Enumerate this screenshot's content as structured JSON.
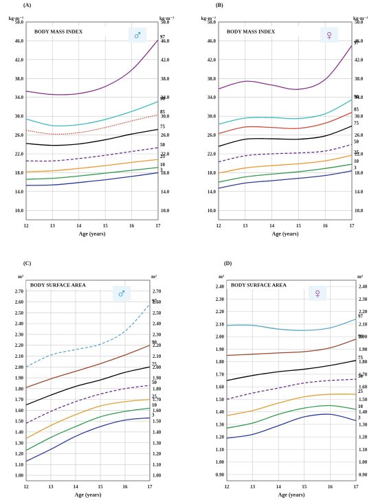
{
  "chart_data": [
    {
      "type": "line",
      "panel_label": "(A)",
      "title": "BODY MASS INDEX",
      "sex_symbol": "♂",
      "symbol_color": "#2a8fd0",
      "unit_left": "kg·m⁻²",
      "unit_right": "kg·m⁻²",
      "xlabel": "Age (years)",
      "xlim": [
        12,
        17
      ],
      "x_ticks": [
        "12",
        "13",
        "14",
        "15",
        "16",
        "17"
      ],
      "ylim": [
        8,
        50
      ],
      "y_ticks": [
        "10.0",
        "14.0",
        "18.0",
        "22.0",
        "26.0",
        "30.0",
        "34.0",
        "38.0",
        "42.0",
        "46.0",
        "50.0"
      ],
      "y_tick_values": [
        10,
        14,
        18,
        22,
        26,
        30,
        34,
        38,
        42,
        46,
        50
      ],
      "x": [
        12,
        13,
        14,
        15,
        16,
        17
      ],
      "series": [
        {
          "name": "97",
          "values": [
            35.3,
            34.6,
            34.8,
            36.3,
            39.8,
            46.2
          ],
          "color": "#8b2f8b",
          "dash": "solid"
        },
        {
          "name": "90",
          "values": [
            29.4,
            28.0,
            28.2,
            29.3,
            31.0,
            33.1
          ],
          "color": "#3cbcc0",
          "dash": "solid"
        },
        {
          "name": "85",
          "values": [
            27.0,
            26.2,
            26.5,
            27.6,
            29.0,
            30.3
          ],
          "color": "#d04a3a",
          "dash": "dotted"
        },
        {
          "name": "75",
          "values": [
            24.2,
            23.8,
            24.1,
            25.0,
            26.2,
            27.2
          ],
          "color": "#000000",
          "dash": "solid"
        },
        {
          "name": "50",
          "values": [
            20.5,
            20.5,
            21.0,
            21.7,
            22.5,
            23.3
          ],
          "color": "#6a2d8e",
          "dash": "dashed"
        },
        {
          "name": "25",
          "values": [
            18.2,
            18.4,
            18.9,
            19.5,
            20.2,
            20.8
          ],
          "color": "#f0962a",
          "dash": "solid"
        },
        {
          "name": "10",
          "values": [
            16.6,
            16.8,
            17.3,
            17.9,
            18.5,
            19.1
          ],
          "color": "#2e9a4a",
          "dash": "solid"
        },
        {
          "name": "3",
          "values": [
            15.3,
            15.4,
            15.9,
            16.5,
            17.2,
            18.0
          ],
          "color": "#2b3a9a",
          "dash": "solid"
        }
      ]
    },
    {
      "type": "line",
      "panel_label": "(B)",
      "title": "BODY MASS INDEX",
      "sex_symbol": "♀",
      "symbol_color": "#a0399a",
      "unit_left": "kg·m⁻²",
      "unit_right": "kg·m⁻²",
      "xlabel": "Age (years)",
      "xlim": [
        12,
        17
      ],
      "x_ticks": [
        "12",
        "13",
        "14",
        "15",
        "16",
        "17"
      ],
      "ylim": [
        8,
        50
      ],
      "y_ticks": [
        "10.0",
        "14.0",
        "18.0",
        "22.0",
        "26.0",
        "30.0",
        "34.0",
        "38.0",
        "42.0",
        "46.0",
        "50.0"
      ],
      "y_tick_values": [
        10,
        14,
        18,
        22,
        26,
        30,
        34,
        38,
        42,
        46,
        50
      ],
      "x": [
        12,
        13,
        14,
        15,
        16,
        17
      ],
      "series": [
        {
          "name": "97",
          "values": [
            35.8,
            37.4,
            36.6,
            35.7,
            37.8,
            45.0
          ],
          "color": "#8b2f8b",
          "dash": "solid"
        },
        {
          "name": "90",
          "values": [
            28.3,
            29.6,
            29.7,
            29.5,
            30.5,
            33.5
          ],
          "color": "#3cbcc0",
          "dash": "solid"
        },
        {
          "name": "85",
          "values": [
            26.3,
            27.7,
            27.6,
            27.4,
            28.5,
            30.8
          ],
          "color": "#d04a3a",
          "dash": "solid"
        },
        {
          "name": "75",
          "values": [
            23.6,
            25.1,
            25.2,
            25.1,
            25.8,
            27.9
          ],
          "color": "#000000",
          "dash": "solid"
        },
        {
          "name": "50",
          "values": [
            20.3,
            21.6,
            22.0,
            22.2,
            22.6,
            24.0
          ],
          "color": "#6a2d8e",
          "dash": "dashed"
        },
        {
          "name": "25",
          "values": [
            17.9,
            19.0,
            19.5,
            19.9,
            20.5,
            21.7
          ],
          "color": "#f0962a",
          "dash": "solid"
        },
        {
          "name": "10",
          "values": [
            16.0,
            17.1,
            17.7,
            18.2,
            18.9,
            19.8
          ],
          "color": "#2e9a4a",
          "dash": "solid"
        },
        {
          "name": "3",
          "values": [
            14.7,
            15.8,
            16.3,
            16.8,
            17.4,
            18.4
          ],
          "color": "#2b3a9a",
          "dash": "solid"
        }
      ]
    },
    {
      "type": "line",
      "panel_label": "(C)",
      "title": "BODY SURFACE AREA",
      "sex_symbol": "♂",
      "symbol_color": "#2a8fd0",
      "unit_left": "m²",
      "unit_right": "m²",
      "xlabel": "Age (years)",
      "xlim": [
        12,
        17
      ],
      "x_ticks": [
        "12",
        "13",
        "14",
        "15",
        "16",
        "17"
      ],
      "ylim": [
        0.95,
        2.8
      ],
      "y_ticks": [
        "1.00",
        "1.10",
        "1.20",
        "1.30",
        "1.40",
        "1.50",
        "1.60",
        "1.70",
        "1.80",
        "1.90",
        "2.00",
        "2.10",
        "2.20",
        "2.30",
        "2.40",
        "2.50",
        "2.60",
        "2.70"
      ],
      "y_tick_values": [
        1.0,
        1.1,
        1.2,
        1.3,
        1.4,
        1.5,
        1.6,
        1.7,
        1.8,
        1.9,
        2.0,
        2.1,
        2.2,
        2.3,
        2.4,
        2.5,
        2.6,
        2.7
      ],
      "x": [
        12,
        13,
        14,
        15,
        16,
        17
      ],
      "series": [
        {
          "name": "97",
          "values": [
            2.0,
            2.11,
            2.16,
            2.21,
            2.33,
            2.58
          ],
          "color": "#5aa8c8",
          "dash": "dashed"
        },
        {
          "name": "90",
          "values": [
            1.81,
            1.89,
            1.96,
            2.03,
            2.11,
            2.2
          ],
          "color": "#a0442a",
          "dash": "solid"
        },
        {
          "name": "75",
          "values": [
            1.65,
            1.74,
            1.82,
            1.88,
            1.95,
            2.0
          ],
          "color": "#000000",
          "dash": "solid"
        },
        {
          "name": "50",
          "values": [
            1.48,
            1.59,
            1.68,
            1.75,
            1.8,
            1.83
          ],
          "color": "#6a2d8e",
          "dash": "dashed"
        },
        {
          "name": "25",
          "values": [
            1.34,
            1.46,
            1.56,
            1.64,
            1.68,
            1.7
          ],
          "color": "#e0a030",
          "dash": "solid"
        },
        {
          "name": "10",
          "values": [
            1.23,
            1.35,
            1.45,
            1.54,
            1.59,
            1.62
          ],
          "color": "#2e9a4a",
          "dash": "solid"
        },
        {
          "name": "3",
          "values": [
            1.13,
            1.24,
            1.36,
            1.45,
            1.51,
            1.53
          ],
          "color": "#2b3a9a",
          "dash": "solid"
        }
      ]
    },
    {
      "type": "line",
      "panel_label": "(D)",
      "title": "BODY SURFACE AREA",
      "sex_symbol": "♀",
      "symbol_color": "#a0399a",
      "unit_left": "m²",
      "unit_right": "m²",
      "xlabel": "Age (years)",
      "xlim": [
        12,
        17
      ],
      "x_ticks": [
        "12",
        "13",
        "14",
        "15",
        "16",
        "17"
      ],
      "ylim": [
        0.85,
        2.45
      ],
      "y_ticks": [
        "0.90",
        "1.00",
        "1.10",
        "1.20",
        "1.30",
        "1.40",
        "1.50",
        "1.60",
        "1.70",
        "1.80",
        "1.90",
        "2.00",
        "2.10",
        "2.20",
        "2.30",
        "2.40"
      ],
      "y_tick_values": [
        0.9,
        1.0,
        1.1,
        1.2,
        1.3,
        1.4,
        1.5,
        1.6,
        1.7,
        1.8,
        1.9,
        2.0,
        2.1,
        2.2,
        2.3,
        2.4
      ],
      "x": [
        12,
        13,
        14,
        15,
        16,
        17
      ],
      "series": [
        {
          "name": "97",
          "values": [
            2.09,
            2.09,
            2.06,
            2.05,
            2.07,
            2.14
          ],
          "color": "#5aa8c8",
          "dash": "solid"
        },
        {
          "name": "90",
          "values": [
            1.85,
            1.86,
            1.87,
            1.88,
            1.91,
            1.98
          ],
          "color": "#a0442a",
          "dash": "solid"
        },
        {
          "name": "75",
          "values": [
            1.65,
            1.69,
            1.72,
            1.74,
            1.77,
            1.81
          ],
          "color": "#000000",
          "dash": "solid"
        },
        {
          "name": "50",
          "values": [
            1.5,
            1.55,
            1.59,
            1.63,
            1.65,
            1.66
          ],
          "color": "#6a2d8e",
          "dash": "dashed"
        },
        {
          "name": "25",
          "values": [
            1.37,
            1.41,
            1.47,
            1.52,
            1.54,
            1.54
          ],
          "color": "#e0a030",
          "dash": "solid"
        },
        {
          "name": "10",
          "values": [
            1.27,
            1.31,
            1.38,
            1.43,
            1.45,
            1.42
          ],
          "color": "#2e9a4a",
          "dash": "solid"
        },
        {
          "name": "3",
          "values": [
            1.19,
            1.22,
            1.29,
            1.36,
            1.38,
            1.33
          ],
          "color": "#2b3a9a",
          "dash": "solid"
        }
      ]
    }
  ]
}
